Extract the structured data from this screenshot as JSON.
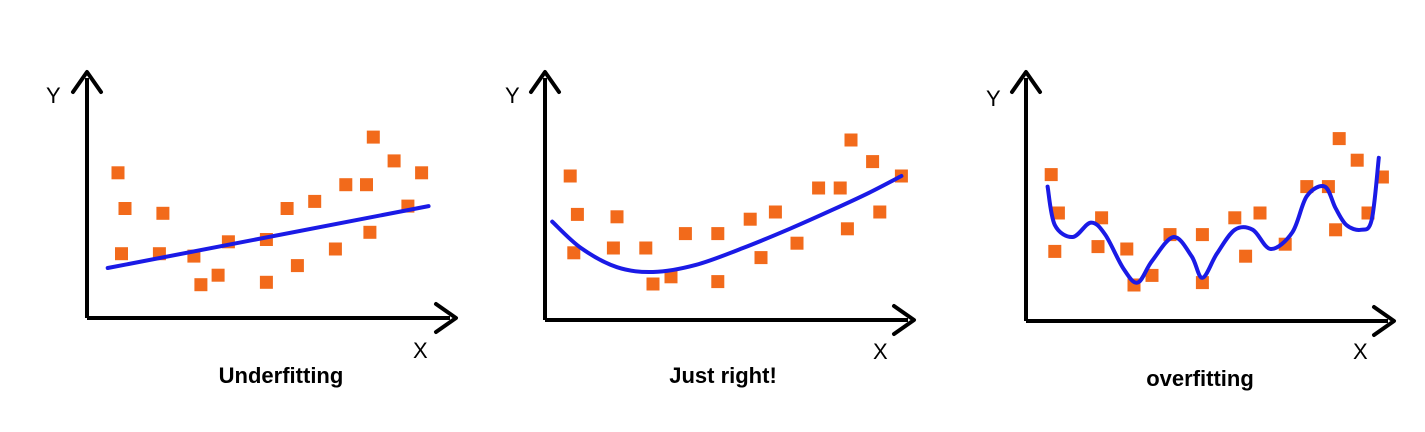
{
  "colors": {
    "point": "#F26A1B",
    "curve": "#1A1AE6",
    "axis": "#000000",
    "background": "#FFFFFF"
  },
  "panels": [
    {
      "title": "Underfitting",
      "x_label": "X",
      "y_label": "Y",
      "fit": "linear",
      "points": [
        [
          0.09,
          0.61
        ],
        [
          0.11,
          0.46
        ],
        [
          0.1,
          0.27
        ],
        [
          0.22,
          0.44
        ],
        [
          0.21,
          0.27
        ],
        [
          0.31,
          0.26
        ],
        [
          0.33,
          0.14
        ],
        [
          0.38,
          0.18
        ],
        [
          0.41,
          0.32
        ],
        [
          0.52,
          0.33
        ],
        [
          0.52,
          0.15
        ],
        [
          0.58,
          0.46
        ],
        [
          0.61,
          0.22
        ],
        [
          0.66,
          0.49
        ],
        [
          0.72,
          0.29
        ],
        [
          0.75,
          0.56
        ],
        [
          0.81,
          0.56
        ],
        [
          0.82,
          0.36
        ],
        [
          0.83,
          0.76
        ],
        [
          0.89,
          0.66
        ],
        [
          0.93,
          0.47
        ],
        [
          0.97,
          0.61
        ]
      ],
      "curve": [
        [
          0.06,
          0.21
        ],
        [
          0.99,
          0.47
        ]
      ]
    },
    {
      "title": "Just right!",
      "x_label": "X",
      "y_label": "Y",
      "fit": "smooth",
      "points": [
        [
          0.07,
          0.6
        ],
        [
          0.09,
          0.44
        ],
        [
          0.08,
          0.28
        ],
        [
          0.2,
          0.43
        ],
        [
          0.19,
          0.3
        ],
        [
          0.28,
          0.3
        ],
        [
          0.3,
          0.15
        ],
        [
          0.35,
          0.18
        ],
        [
          0.39,
          0.36
        ],
        [
          0.48,
          0.36
        ],
        [
          0.48,
          0.16
        ],
        [
          0.57,
          0.42
        ],
        [
          0.6,
          0.26
        ],
        [
          0.64,
          0.45
        ],
        [
          0.7,
          0.32
        ],
        [
          0.76,
          0.55
        ],
        [
          0.82,
          0.55
        ],
        [
          0.84,
          0.38
        ],
        [
          0.85,
          0.75
        ],
        [
          0.91,
          0.66
        ],
        [
          0.93,
          0.45
        ],
        [
          0.99,
          0.6
        ]
      ],
      "curve": [
        [
          0.02,
          0.41
        ],
        [
          0.1,
          0.3
        ],
        [
          0.2,
          0.22
        ],
        [
          0.3,
          0.2
        ],
        [
          0.42,
          0.23
        ],
        [
          0.55,
          0.3
        ],
        [
          0.68,
          0.38
        ],
        [
          0.8,
          0.46
        ],
        [
          0.9,
          0.53
        ],
        [
          0.99,
          0.6
        ]
      ]
    },
    {
      "title": "overfitting",
      "x_label": "X",
      "y_label": "Y",
      "fit": "wiggly",
      "points": [
        [
          0.07,
          0.61
        ],
        [
          0.09,
          0.45
        ],
        [
          0.08,
          0.29
        ],
        [
          0.21,
          0.43
        ],
        [
          0.2,
          0.31
        ],
        [
          0.28,
          0.3
        ],
        [
          0.3,
          0.15
        ],
        [
          0.35,
          0.19
        ],
        [
          0.4,
          0.36
        ],
        [
          0.49,
          0.36
        ],
        [
          0.49,
          0.16
        ],
        [
          0.58,
          0.43
        ],
        [
          0.61,
          0.27
        ],
        [
          0.65,
          0.45
        ],
        [
          0.72,
          0.32
        ],
        [
          0.78,
          0.56
        ],
        [
          0.84,
          0.56
        ],
        [
          0.86,
          0.38
        ],
        [
          0.87,
          0.76
        ],
        [
          0.92,
          0.67
        ],
        [
          0.95,
          0.45
        ],
        [
          0.99,
          0.6
        ]
      ],
      "curve": [
        [
          0.06,
          0.56
        ],
        [
          0.08,
          0.4
        ],
        [
          0.13,
          0.35
        ],
        [
          0.18,
          0.41
        ],
        [
          0.22,
          0.36
        ],
        [
          0.27,
          0.22
        ],
        [
          0.31,
          0.16
        ],
        [
          0.35,
          0.25
        ],
        [
          0.41,
          0.35
        ],
        [
          0.46,
          0.27
        ],
        [
          0.49,
          0.18
        ],
        [
          0.53,
          0.28
        ],
        [
          0.58,
          0.38
        ],
        [
          0.63,
          0.38
        ],
        [
          0.68,
          0.3
        ],
        [
          0.74,
          0.37
        ],
        [
          0.78,
          0.52
        ],
        [
          0.83,
          0.56
        ],
        [
          0.86,
          0.47
        ],
        [
          0.89,
          0.4
        ],
        [
          0.93,
          0.38
        ],
        [
          0.96,
          0.42
        ],
        [
          0.98,
          0.68
        ]
      ]
    }
  ]
}
